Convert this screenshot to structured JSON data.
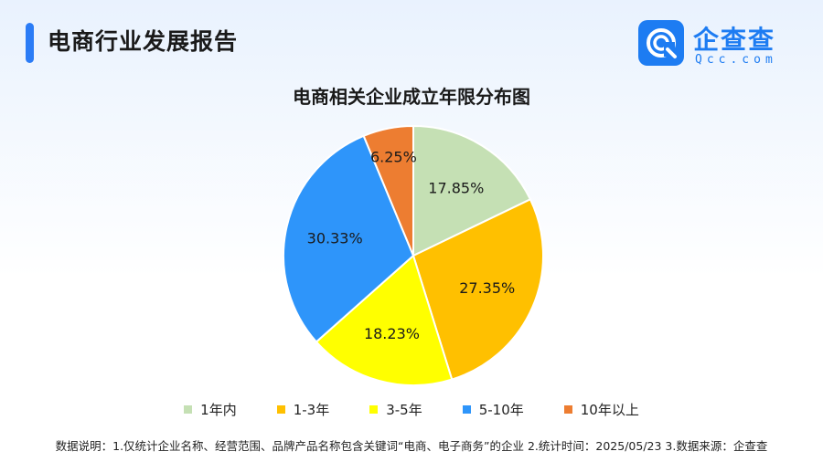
{
  "header": {
    "report_title": "电商行业发展报告"
  },
  "logo": {
    "name": "企查查",
    "sub": "Qcc.com"
  },
  "chart_data": {
    "type": "pie",
    "title": "电商相关企业成立年限分布图",
    "categories": [
      "1年内",
      "1-3年",
      "3-5年",
      "5-10年",
      "10年以上"
    ],
    "values": [
      17.85,
      27.35,
      18.23,
      30.33,
      6.25
    ],
    "labels": [
      "17.85%",
      "27.35%",
      "18.23%",
      "30.33%",
      "6.25%"
    ],
    "colors": [
      "#c5e0b4",
      "#ffc000",
      "#ffff00",
      "#2e95fa",
      "#ed7d31"
    ],
    "legend_position": "bottom"
  },
  "footnote": "数据说明：1.仅统计企业名称、经营范围、品牌产品名称包含关键词“电商、电子商务”的企业  2.统计时间：2025/05/23   3.数据来源：企查查"
}
